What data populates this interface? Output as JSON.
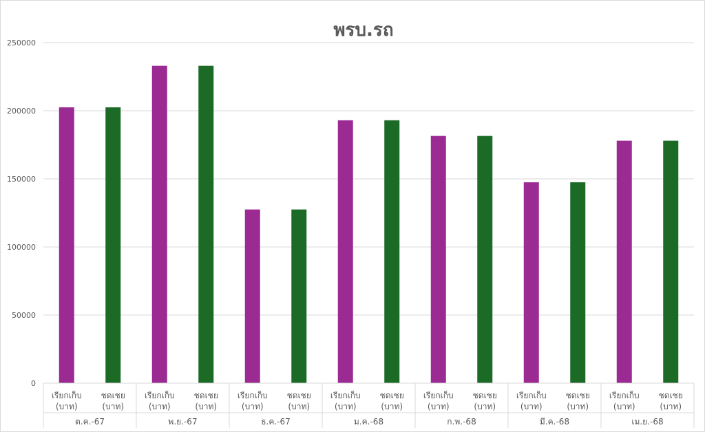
{
  "chart_data": {
    "type": "bar",
    "title": "พรบ.รถ",
    "xlabel": "",
    "ylabel": "",
    "ylim": [
      0,
      250000
    ],
    "yticks": [
      "0",
      "50000",
      "100000",
      "150000",
      "200000",
      "250000"
    ],
    "grid": true,
    "legend": "none",
    "sub_categories": [
      [
        "เรียกเก็บ",
        "(บาท)"
      ],
      [
        "ชดเชย",
        "(บาท)"
      ]
    ],
    "categories": [
      "ต.ค.-67",
      "พ.ย.-67",
      "ธ.ค.-67",
      "ม.ค.-68",
      "ก.พ.-68",
      "มี.ค.-68",
      "เม.ย.-68"
    ],
    "series": [
      {
        "key": "collected",
        "color": "#9b2b93",
        "values": [
          202500,
          233000,
          127500,
          193000,
          181500,
          147500,
          178000
        ]
      },
      {
        "key": "compensated",
        "color": "#1b6b26",
        "values": [
          202500,
          233000,
          127500,
          193000,
          181500,
          147500,
          178000
        ]
      }
    ]
  }
}
